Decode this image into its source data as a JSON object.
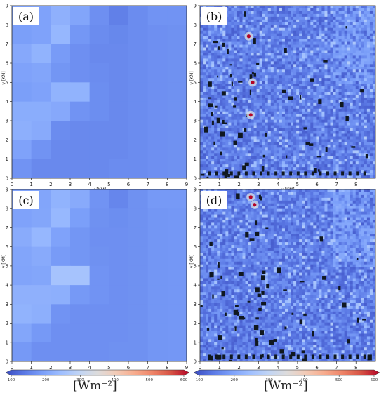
{
  "chart_data": [
    {
      "panel": "(a)",
      "type": "heatmap",
      "xlabel": "x [KM]",
      "ylabel": "y [KM]",
      "xlim": [
        0,
        9
      ],
      "ylim": [
        0,
        9
      ],
      "xticks": [
        "0",
        "1",
        "2",
        "3",
        "4",
        "5",
        "6",
        "7",
        "8",
        "9"
      ],
      "yticks": [
        "0",
        "1",
        "2",
        "3",
        "4",
        "5",
        "6",
        "7",
        "8",
        "9"
      ],
      "grid_rows_top_to_bottom": [
        [
          200,
          205,
          228,
          210,
          180,
          160,
          175,
          185,
          185
        ],
        [
          200,
          205,
          238,
          190,
          175,
          170,
          175,
          180,
          182
        ],
        [
          215,
          232,
          195,
          180,
          172,
          172,
          175,
          180,
          182
        ],
        [
          205,
          210,
          188,
          180,
          175,
          172,
          175,
          180,
          182
        ],
        [
          200,
          205,
          232,
          232,
          178,
          172,
          175,
          180,
          182
        ],
        [
          222,
          222,
          215,
          185,
          178,
          172,
          175,
          180,
          182
        ],
        [
          225,
          218,
          175,
          172,
          172,
          172,
          175,
          180,
          182
        ],
        [
          205,
          185,
          172,
          172,
          172,
          172,
          175,
          180,
          182
        ],
        [
          185,
          172,
          172,
          172,
          172,
          175,
          175,
          180,
          182
        ]
      ]
    },
    {
      "panel": "(b)",
      "type": "heatmap",
      "xlabel": "x [KM]",
      "ylabel": "y [KM]",
      "xlim": [
        0,
        9
      ],
      "ylim": [
        0,
        9
      ],
      "xticks": [
        "0",
        "1",
        "2",
        "3",
        "4",
        "5",
        "6",
        "7",
        "8"
      ],
      "yticks": [
        "0",
        "1",
        "2",
        "3",
        "4",
        "5",
        "6",
        "7",
        "8",
        "9"
      ],
      "hotspots": [
        [
          2.5,
          7.4
        ],
        [
          2.7,
          5.0
        ],
        [
          2.6,
          3.3
        ]
      ]
    },
    {
      "panel": "(c)",
      "type": "heatmap",
      "xlabel": "x [KM]",
      "ylabel": "y [KM]",
      "xlim": [
        0,
        9
      ],
      "ylim": [
        0,
        9
      ],
      "xticks": [
        "0",
        "1",
        "2",
        "3",
        "4",
        "5",
        "6",
        "7",
        "8",
        "9"
      ],
      "yticks": [
        "0",
        "1",
        "2",
        "3",
        "4",
        "5",
        "6",
        "7",
        "8",
        "9"
      ],
      "grid_rows_top_to_bottom": [
        [
          205,
          210,
          232,
          218,
          185,
          168,
          182,
          192,
          192
        ],
        [
          205,
          212,
          240,
          200,
          182,
          178,
          182,
          188,
          190
        ],
        [
          220,
          238,
          205,
          188,
          180,
          180,
          182,
          188,
          190
        ],
        [
          210,
          218,
          195,
          188,
          182,
          180,
          182,
          188,
          190
        ],
        [
          208,
          212,
          262,
          262,
          185,
          180,
          182,
          188,
          190
        ],
        [
          228,
          228,
          225,
          192,
          185,
          180,
          182,
          188,
          190
        ],
        [
          232,
          225,
          185,
          180,
          180,
          180,
          182,
          188,
          190
        ],
        [
          212,
          192,
          180,
          180,
          180,
          180,
          182,
          188,
          190
        ],
        [
          192,
          180,
          180,
          180,
          180,
          182,
          182,
          188,
          190
        ]
      ]
    },
    {
      "panel": "(d)",
      "type": "heatmap",
      "xlabel": "x [KM]",
      "ylabel": "y [KM]",
      "xlim": [
        0,
        9
      ],
      "ylim": [
        0,
        9
      ],
      "xticks": [
        "0",
        "1",
        "2",
        "3",
        "4",
        "5",
        "6",
        "7",
        "8"
      ],
      "yticks": [
        "0",
        "1",
        "2",
        "3",
        "4",
        "5",
        "6",
        "7",
        "8",
        "9"
      ],
      "hotspots": [
        [
          2.6,
          8.6
        ],
        [
          2.8,
          8.2
        ]
      ]
    }
  ],
  "colorbars": [
    {
      "ticks": [
        "100",
        "200",
        "300",
        "400",
        "500",
        "600"
      ],
      "range": [
        100,
        600
      ],
      "unit_label": "[Wm⁻²]"
    },
    {
      "ticks": [
        "100",
        "200",
        "300",
        "400",
        "500",
        "600"
      ],
      "range": [
        100,
        600
      ],
      "unit_label": "[Wm⁻²]"
    }
  ],
  "colormap": [
    "#3b4cc0",
    "#5a78e4",
    "#7b9ff9",
    "#9ebeff",
    "#c0d4f5",
    "#dddcdc",
    "#f2cbb7",
    "#f7ac8e",
    "#ee8468",
    "#d65244",
    "#b40426"
  ]
}
